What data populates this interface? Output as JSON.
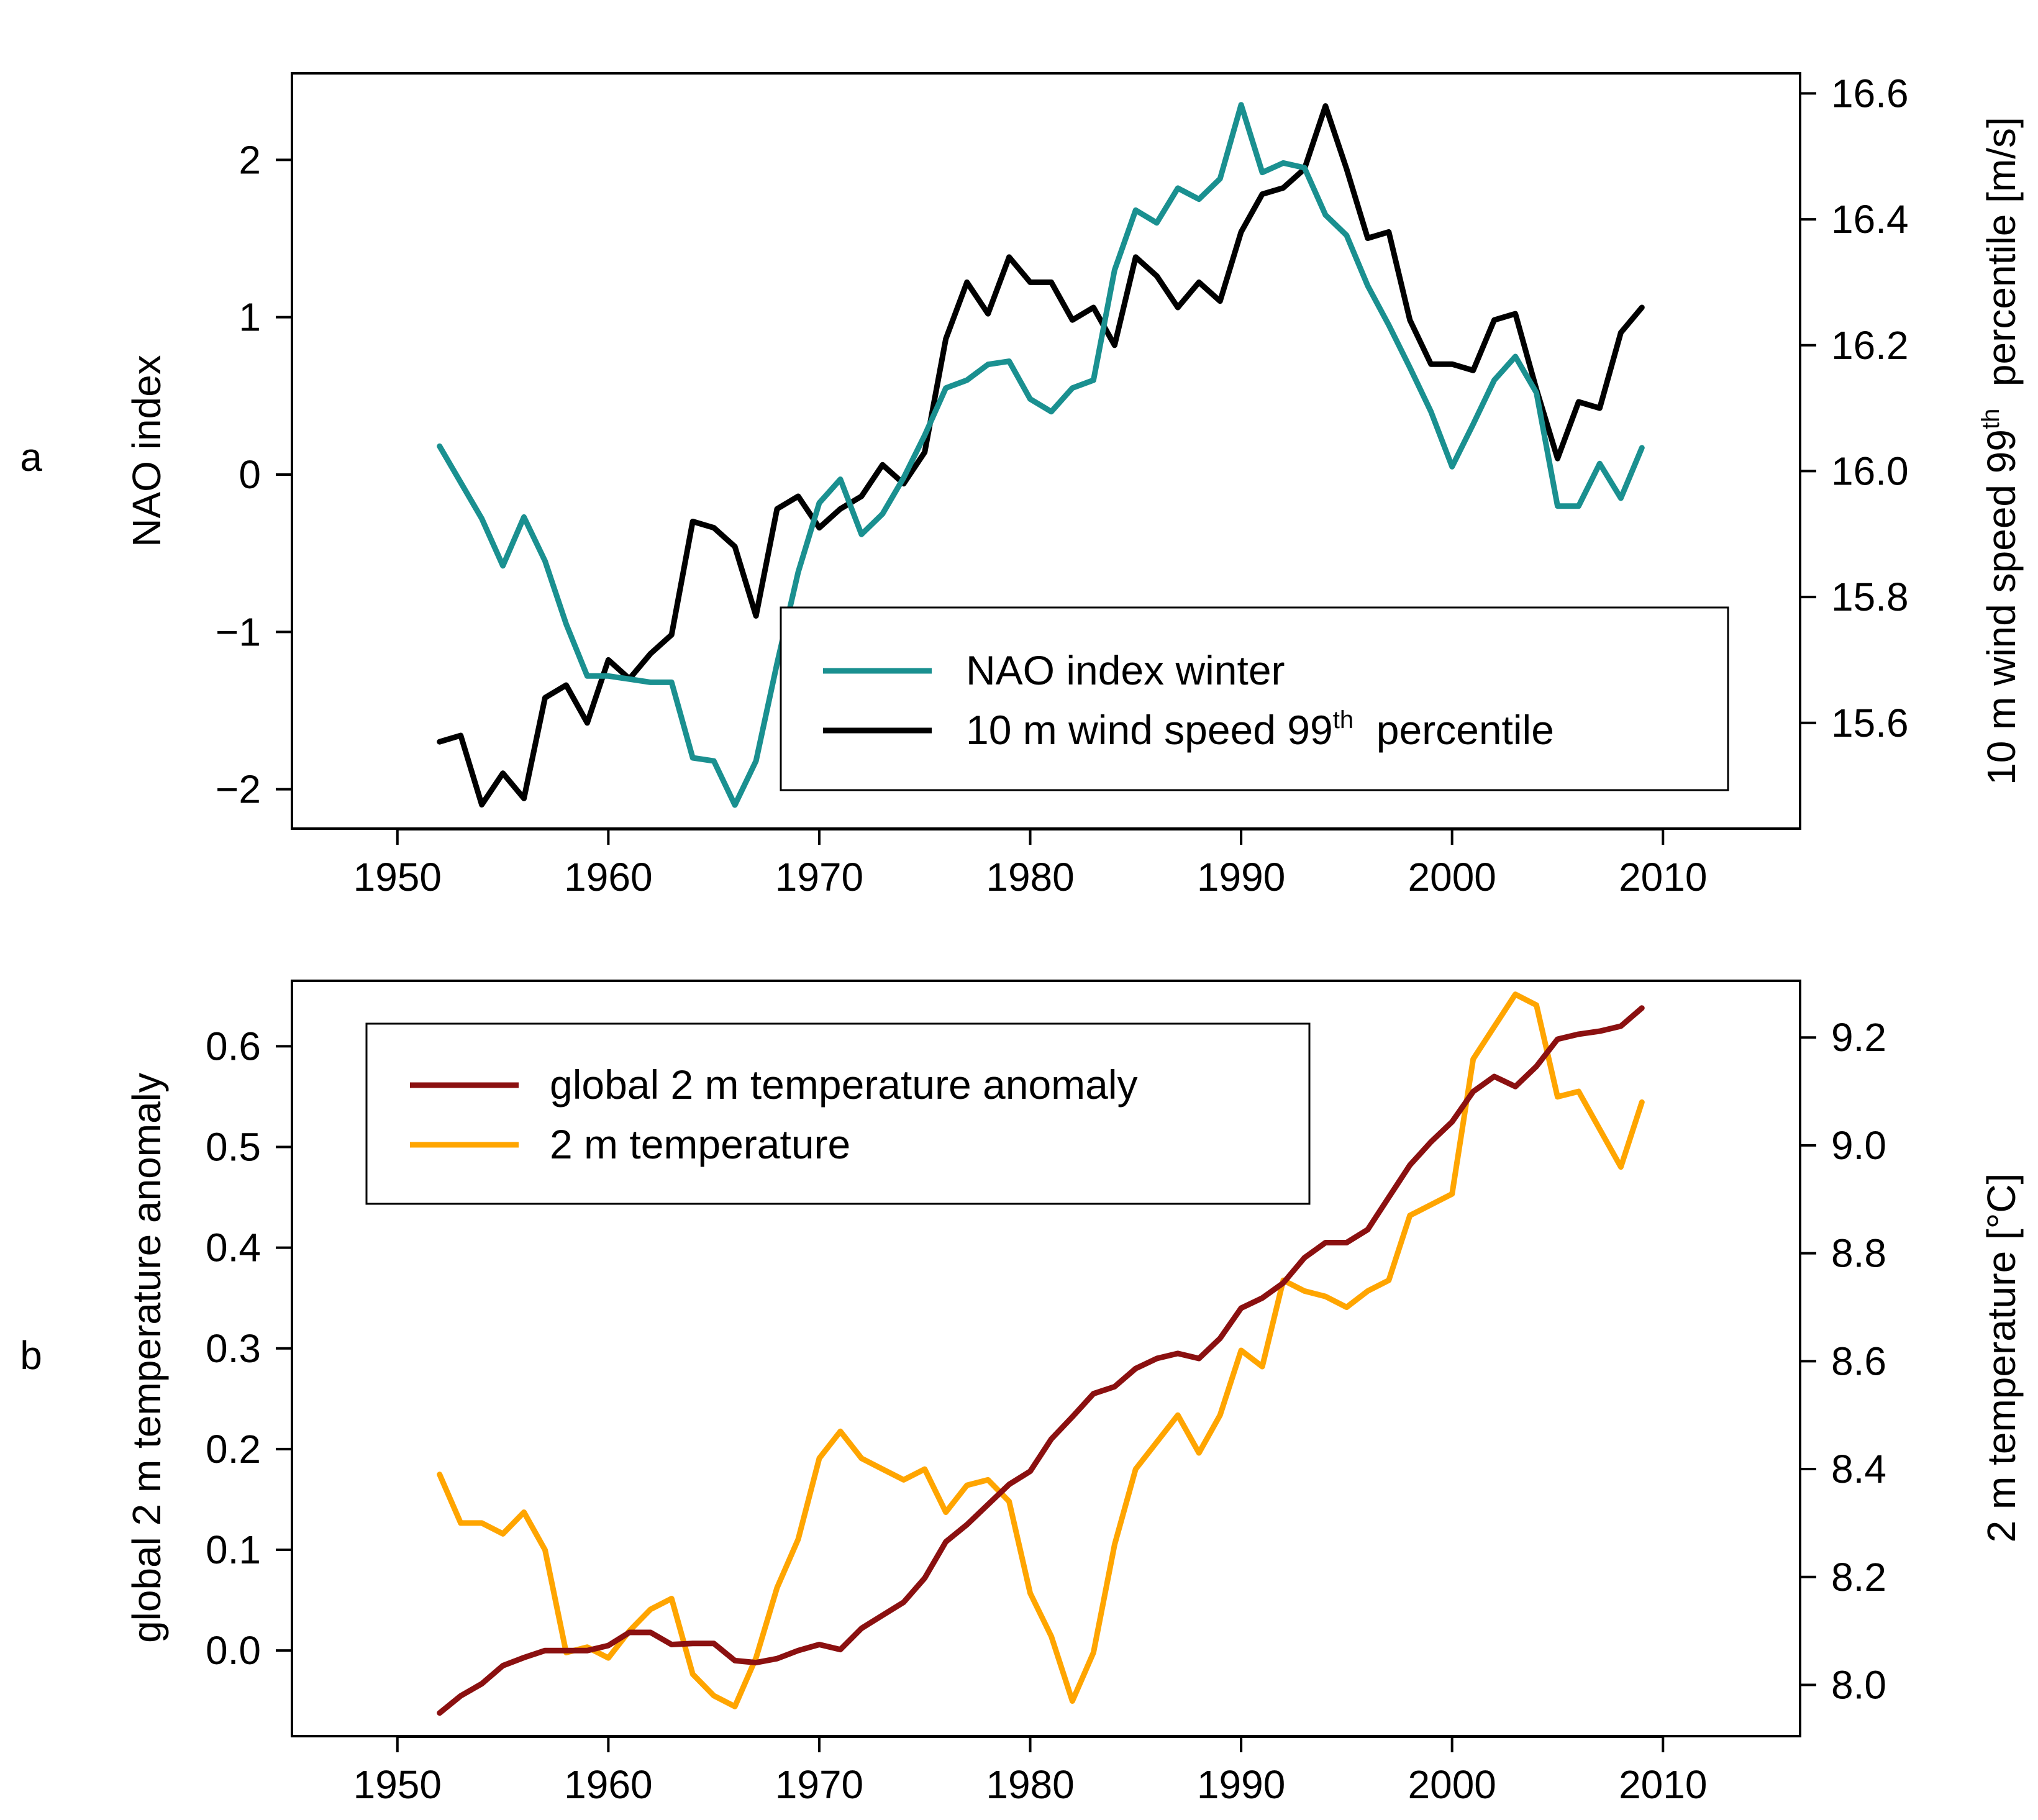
{
  "colors": {
    "nao": "#1a9090",
    "wind": "#000000",
    "anomaly": "#8b1010",
    "temp": "#ffa500"
  },
  "chart_data": [
    {
      "type": "line",
      "panel_label": "a",
      "xlabel": "",
      "ylabel_left": "NAO index",
      "ylabel_right_pre": "10 m wind speed 99",
      "ylabel_right_sup": "th",
      "ylabel_right_post": "  percentile [m/s]",
      "xlim": [
        1945,
        2016.5
      ],
      "ylim_left": [
        -2.25,
        2.55
      ],
      "ylim_right": [
        15.432,
        16.632
      ],
      "xticks": [
        1950,
        1960,
        1970,
        1980,
        1990,
        2000,
        2010
      ],
      "xtick_labels": [
        "1950",
        "1960",
        "1970",
        "1980",
        "1990",
        "2000",
        "2010"
      ],
      "yticks_left": [
        -2,
        -1,
        0,
        1,
        2
      ],
      "ytick_labels_left": [
        "−2",
        "−1",
        "0",
        "1",
        "2"
      ],
      "yticks_right": [
        15.6,
        15.8,
        16.0,
        16.2,
        16.4,
        16.6
      ],
      "ytick_labels_right": [
        "15.6",
        "15.8",
        "16.0",
        "16.2",
        "16.4",
        "16.6"
      ],
      "legend": {
        "position": "bottom-right",
        "entries": [
          {
            "label": "NAO index winter",
            "sup": "",
            "post": ""
          },
          {
            "label": "10 m wind speed 99",
            "sup": "th",
            "post": "  percentile"
          }
        ]
      },
      "x": [
        1952,
        1953,
        1954,
        1955,
        1956,
        1957,
        1958,
        1959,
        1960,
        1961,
        1962,
        1963,
        1964,
        1965,
        1966,
        1967,
        1968,
        1969,
        1970,
        1971,
        1972,
        1973,
        1974,
        1975,
        1976,
        1977,
        1978,
        1979,
        1980,
        1981,
        1982,
        1983,
        1984,
        1985,
        1986,
        1987,
        1988,
        1989,
        1990,
        1991,
        1992,
        1993,
        1994,
        1995,
        1996,
        1997,
        1998,
        1999,
        2000,
        2001,
        2002,
        2003,
        2004,
        2005,
        2006,
        2007,
        2008,
        2009
      ],
      "series": [
        {
          "name": "NAO index winter",
          "axis": "left",
          "values": [
            0.18,
            -0.05,
            -0.28,
            -0.58,
            -0.27,
            -0.55,
            -0.95,
            -1.28,
            -1.28,
            -1.3,
            -1.32,
            -1.32,
            -1.8,
            -1.82,
            -2.1,
            -1.82,
            -1.2,
            -0.62,
            -0.18,
            -0.03,
            -0.38,
            -0.25,
            -0.02,
            0.25,
            0.55,
            0.6,
            0.7,
            0.72,
            0.48,
            0.4,
            0.55,
            0.6,
            1.3,
            1.68,
            1.6,
            1.82,
            1.75,
            1.88,
            2.35,
            1.92,
            1.98,
            1.95,
            1.65,
            1.52,
            1.2,
            0.95,
            0.68,
            0.4,
            0.05,
            0.32,
            0.6,
            0.75,
            0.52,
            -0.2,
            -0.2,
            0.07,
            -0.15,
            0.17
          ]
        },
        {
          "name": "10 m wind speed 99th percentile",
          "axis": "right",
          "values": [
            15.57,
            15.58,
            15.47,
            15.52,
            15.48,
            15.64,
            15.66,
            15.6,
            15.7,
            15.67,
            15.71,
            15.74,
            15.92,
            15.91,
            15.88,
            15.77,
            15.94,
            15.96,
            15.91,
            15.94,
            15.96,
            16.01,
            15.98,
            16.03,
            16.21,
            16.3,
            16.25,
            16.34,
            16.3,
            16.3,
            16.24,
            16.26,
            16.2,
            16.34,
            16.31,
            16.26,
            16.3,
            16.27,
            16.38,
            16.44,
            16.45,
            16.48,
            16.58,
            16.48,
            16.37,
            16.38,
            16.24,
            16.17,
            16.17,
            16.16,
            16.24,
            16.25,
            16.13,
            16.02,
            16.11,
            16.1,
            16.22,
            16.26
          ]
        }
      ]
    },
    {
      "type": "line",
      "panel_label": "b",
      "xlabel": "",
      "ylabel_left": "global 2 m temperature anomaly",
      "ylabel_right": "2 m temperature [°C]",
      "xlim": [
        1945,
        2016.5
      ],
      "ylim_left": [
        -0.085,
        0.665
      ],
      "ylim_right": [
        7.905,
        9.305
      ],
      "xticks": [
        1950,
        1960,
        1970,
        1980,
        1990,
        2000,
        2010
      ],
      "xtick_labels": [
        "1950",
        "1960",
        "1970",
        "1980",
        "1990",
        "2000",
        "2010"
      ],
      "yticks_left": [
        0.0,
        0.1,
        0.2,
        0.3,
        0.4,
        0.5,
        0.6
      ],
      "ytick_labels_left": [
        "0.0",
        "0.1",
        "0.2",
        "0.3",
        "0.4",
        "0.5",
        "0.6"
      ],
      "yticks_right": [
        8.0,
        8.2,
        8.4,
        8.6,
        8.8,
        9.0,
        9.2
      ],
      "ytick_labels_right": [
        "8.0",
        "8.2",
        "8.4",
        "8.6",
        "8.8",
        "9.0",
        "9.2"
      ],
      "legend": {
        "position": "top-left",
        "entries": [
          {
            "label": "global 2 m temperature anomaly"
          },
          {
            "label": "2 m temperature"
          }
        ]
      },
      "x": [
        1952,
        1953,
        1954,
        1955,
        1956,
        1957,
        1958,
        1959,
        1960,
        1961,
        1962,
        1963,
        1964,
        1965,
        1966,
        1967,
        1968,
        1969,
        1970,
        1971,
        1972,
        1973,
        1974,
        1975,
        1976,
        1977,
        1978,
        1979,
        1980,
        1981,
        1982,
        1983,
        1984,
        1985,
        1986,
        1987,
        1988,
        1989,
        1990,
        1991,
        1992,
        1993,
        1994,
        1995,
        1996,
        1997,
        1998,
        1999,
        2000,
        2001,
        2002,
        2003,
        2004,
        2005,
        2006,
        2007,
        2008,
        2009
      ],
      "series": [
        {
          "name": "global 2 m temperature anomaly",
          "axis": "left",
          "values": [
            -0.062,
            -0.045,
            -0.033,
            -0.015,
            -0.007,
            0.0,
            0.0,
            0.0,
            0.005,
            0.018,
            0.018,
            0.006,
            0.007,
            0.007,
            -0.01,
            -0.012,
            -0.008,
            0.0,
            0.006,
            0.001,
            0.022,
            0.035,
            0.048,
            0.072,
            0.108,
            0.125,
            0.145,
            0.165,
            0.178,
            0.21,
            0.232,
            0.255,
            0.262,
            0.28,
            0.29,
            0.295,
            0.29,
            0.31,
            0.34,
            0.35,
            0.365,
            0.39,
            0.405,
            0.405,
            0.418,
            0.45,
            0.482,
            0.505,
            0.525,
            0.555,
            0.57,
            0.56,
            0.58,
            0.607,
            0.612,
            0.615,
            0.62,
            0.638
          ]
        },
        {
          "name": "2 m temperature",
          "axis": "right",
          "values": [
            8.39,
            8.3,
            8.3,
            8.28,
            8.32,
            8.25,
            8.06,
            8.07,
            8.05,
            8.1,
            8.14,
            8.16,
            8.02,
            7.98,
            7.96,
            8.05,
            8.18,
            8.27,
            8.42,
            8.47,
            8.42,
            8.4,
            8.38,
            8.4,
            8.32,
            8.37,
            8.38,
            8.34,
            8.17,
            8.09,
            7.97,
            8.06,
            8.26,
            8.4,
            8.45,
            8.5,
            8.43,
            8.5,
            8.62,
            8.59,
            8.75,
            8.73,
            8.72,
            8.7,
            8.73,
            8.75,
            8.87,
            8.89,
            8.91,
            9.16,
            9.22,
            9.28,
            9.26,
            9.09,
            9.1,
            9.03,
            8.96,
            9.08
          ]
        }
      ]
    }
  ]
}
